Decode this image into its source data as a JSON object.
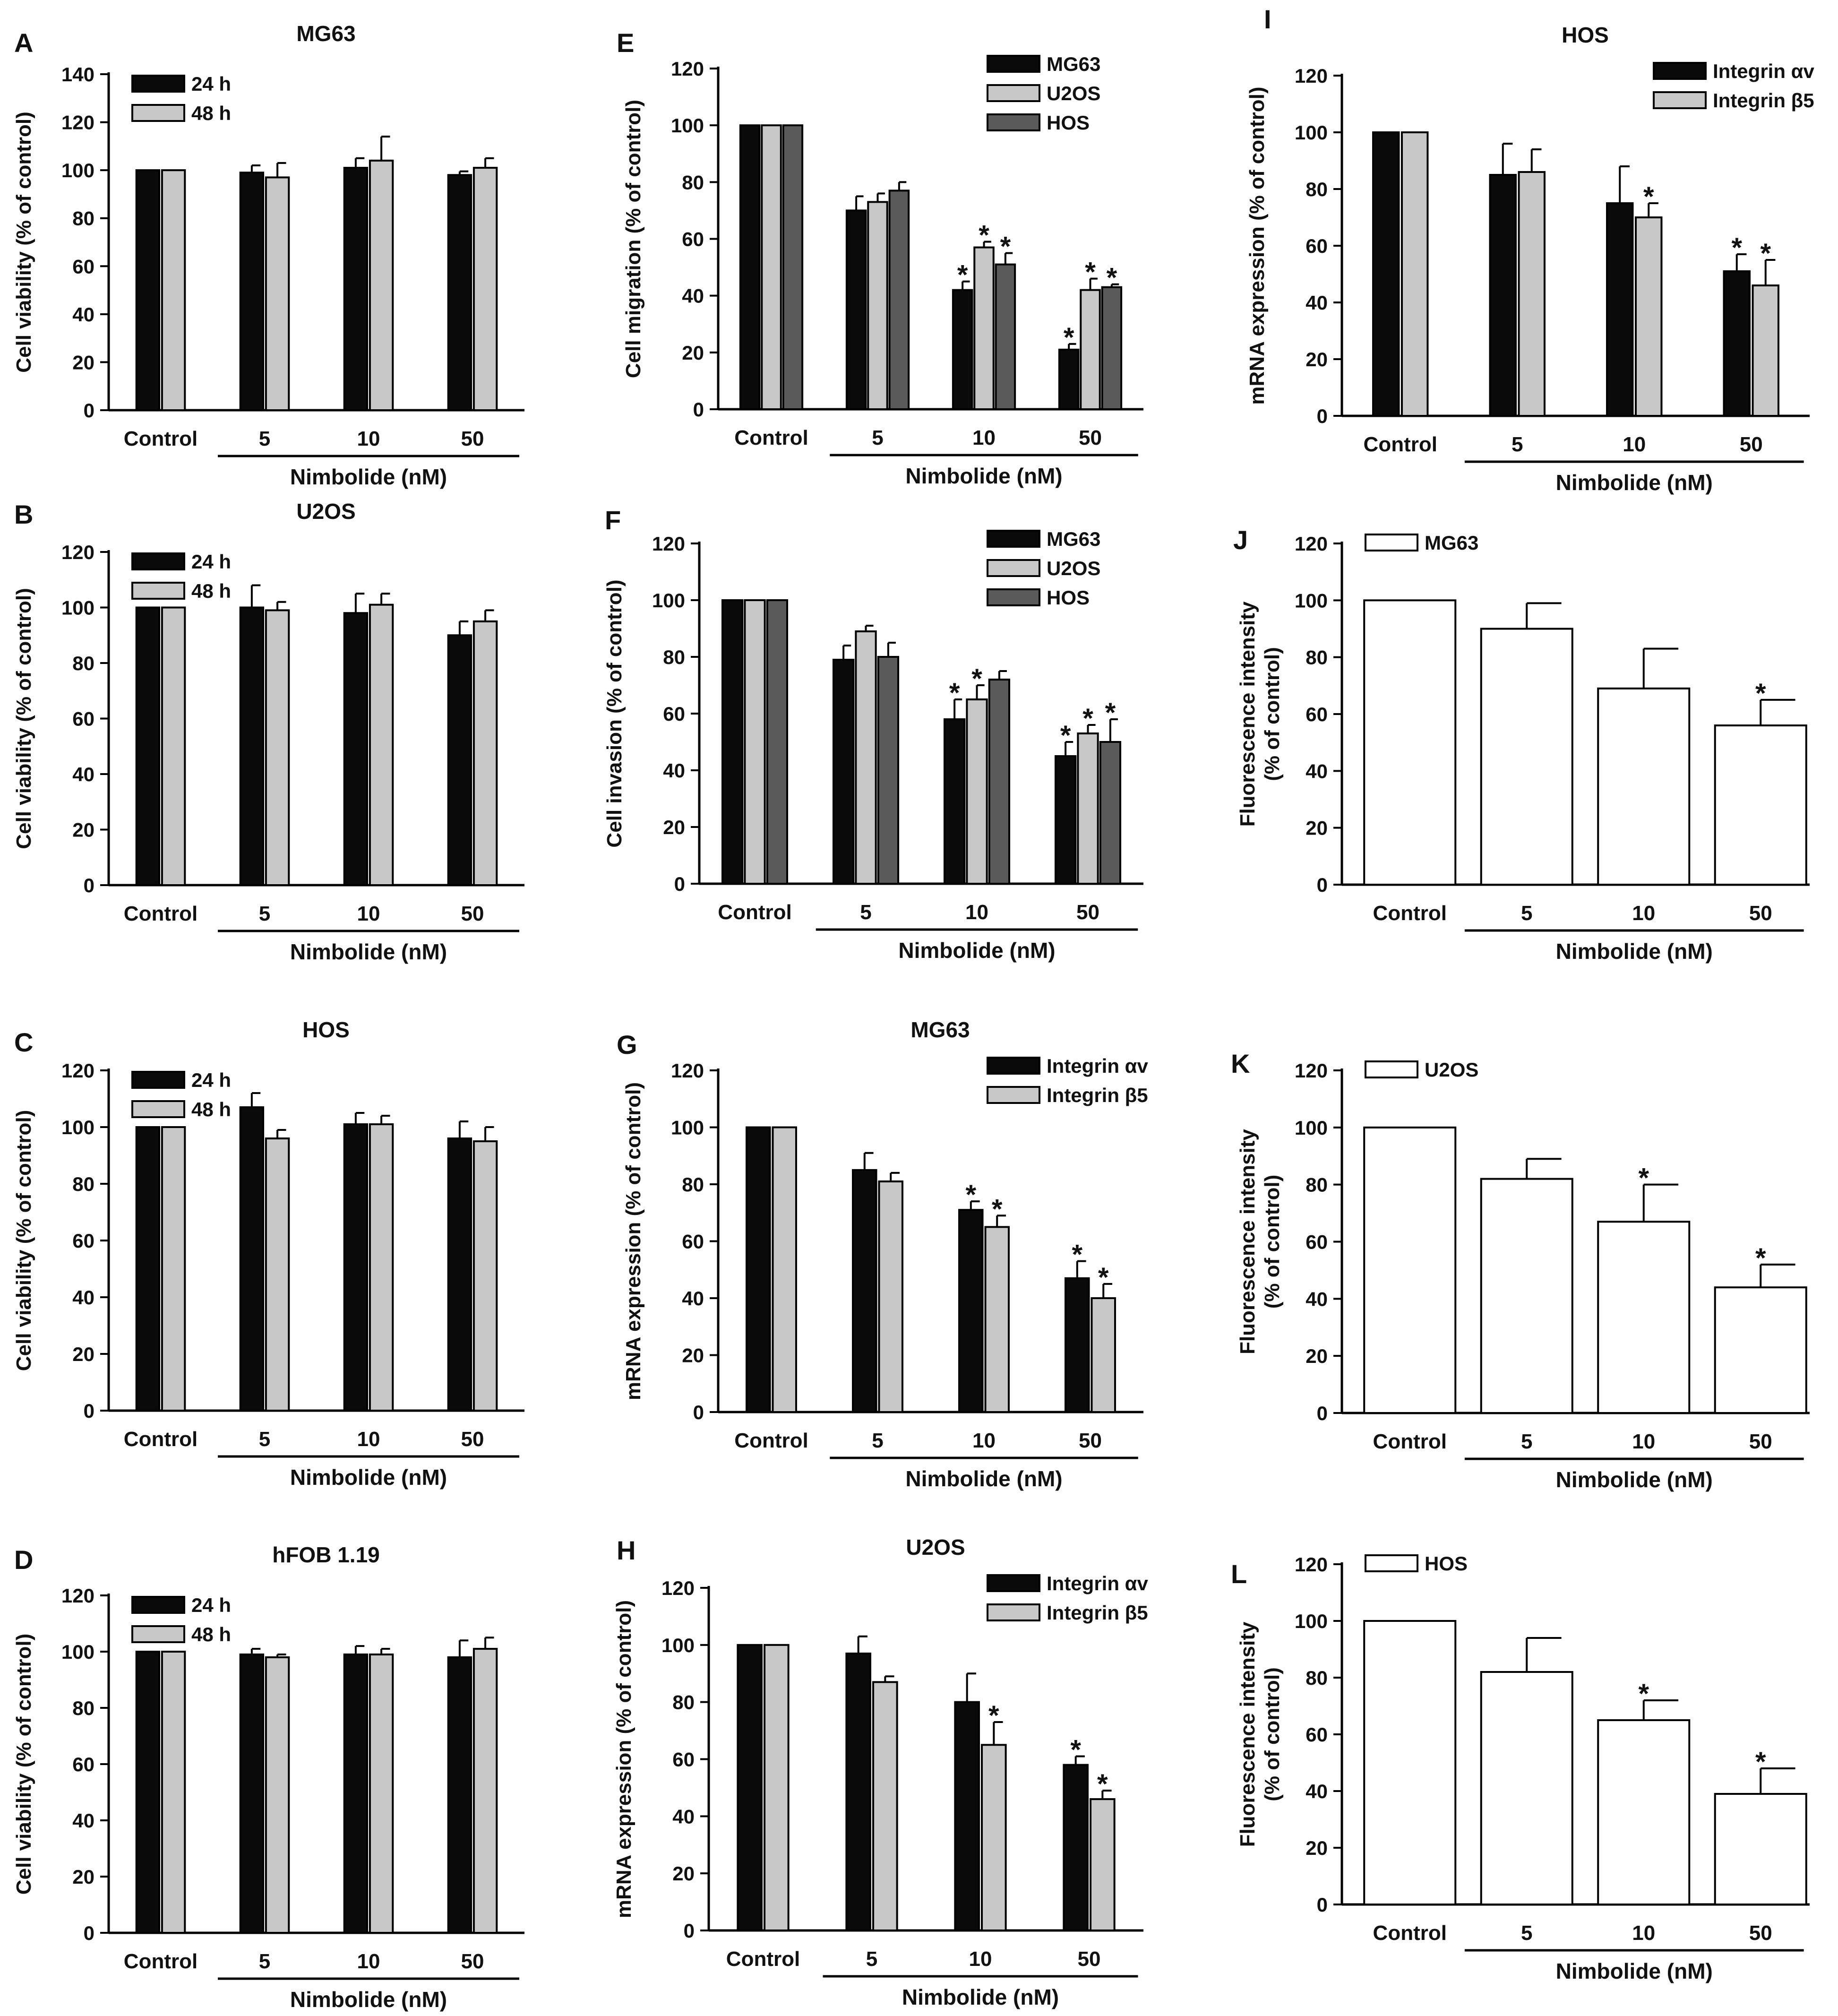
{
  "figure": {
    "x_group_label": "Nimbolide (nM)",
    "colors": {
      "black": "#0a0a0a",
      "light_gray": "#c8c8c8",
      "dark_gray": "#5a5a5a",
      "white": "#ffffff",
      "axis": "#000000"
    },
    "significance_marker": "*"
  },
  "chart_data": [
    {
      "id": "A",
      "panel_label": "A",
      "type": "bar",
      "title": "MG63",
      "ylabel": "Cell viability (% of control)",
      "ylim": [
        0,
        140
      ],
      "yticks": [
        0,
        20,
        40,
        60,
        80,
        100,
        120,
        140
      ],
      "categories": [
        "Control",
        "5",
        "10",
        "50"
      ],
      "xlabel": "Nimbolide (nM)",
      "legend_position": "top-left",
      "series": [
        {
          "name": "24 h",
          "color": "black",
          "values": [
            100,
            99,
            101,
            98
          ],
          "errors": [
            0,
            3,
            4,
            1.5
          ],
          "sig": [
            false,
            false,
            false,
            false
          ]
        },
        {
          "name": "48 h",
          "color": "light_gray",
          "values": [
            100,
            97,
            104,
            101
          ],
          "errors": [
            0,
            6,
            10,
            4
          ],
          "sig": [
            false,
            false,
            false,
            false
          ]
        }
      ]
    },
    {
      "id": "B",
      "panel_label": "B",
      "type": "bar",
      "title": "U2OS",
      "ylabel": "Cell viability (% of control)",
      "ylim": [
        0,
        120
      ],
      "yticks": [
        0,
        20,
        40,
        60,
        80,
        100,
        120
      ],
      "categories": [
        "Control",
        "5",
        "10",
        "50"
      ],
      "xlabel": "Nimbolide (nM)",
      "legend_position": "top-left",
      "series": [
        {
          "name": "24 h",
          "color": "black",
          "values": [
            100,
            100,
            98,
            90
          ],
          "errors": [
            0,
            8,
            7,
            5
          ],
          "sig": [
            false,
            false,
            false,
            false
          ]
        },
        {
          "name": "48 h",
          "color": "light_gray",
          "values": [
            100,
            99,
            101,
            95
          ],
          "errors": [
            0,
            3,
            4,
            4
          ],
          "sig": [
            false,
            false,
            false,
            false
          ]
        }
      ]
    },
    {
      "id": "C",
      "panel_label": "C",
      "type": "bar",
      "title": "HOS",
      "ylabel": "Cell viability (% of control)",
      "ylim": [
        0,
        120
      ],
      "yticks": [
        0,
        20,
        40,
        60,
        80,
        100,
        120
      ],
      "categories": [
        "Control",
        "5",
        "10",
        "50"
      ],
      "xlabel": "Nimbolide (nM)",
      "legend_position": "top-left",
      "series": [
        {
          "name": "24 h",
          "color": "black",
          "values": [
            100,
            107,
            101,
            96
          ],
          "errors": [
            0,
            5,
            4,
            6
          ],
          "sig": [
            false,
            false,
            false,
            false
          ]
        },
        {
          "name": "48 h",
          "color": "light_gray",
          "values": [
            100,
            96,
            101,
            95
          ],
          "errors": [
            0,
            3,
            3,
            5
          ],
          "sig": [
            false,
            false,
            false,
            false
          ]
        }
      ]
    },
    {
      "id": "D",
      "panel_label": "D",
      "type": "bar",
      "title": "hFOB 1.19",
      "ylabel": "Cell viability (% of control)",
      "ylim": [
        0,
        120
      ],
      "yticks": [
        0,
        20,
        40,
        60,
        80,
        100,
        120
      ],
      "categories": [
        "Control",
        "5",
        "10",
        "50"
      ],
      "xlabel": "Nimbolide (nM)",
      "legend_position": "top-left",
      "series": [
        {
          "name": "24 h",
          "color": "black",
          "values": [
            100,
            99,
            99,
            98
          ],
          "errors": [
            0,
            2,
            3,
            6
          ],
          "sig": [
            false,
            false,
            false,
            false
          ]
        },
        {
          "name": "48 h",
          "color": "light_gray",
          "values": [
            100,
            98,
            99,
            101
          ],
          "errors": [
            0,
            1,
            2,
            4
          ],
          "sig": [
            false,
            false,
            false,
            false
          ]
        }
      ]
    },
    {
      "id": "E",
      "panel_label": "E",
      "type": "bar",
      "title": "",
      "ylabel": "Cell migration (% of control)",
      "ylim": [
        0,
        120
      ],
      "yticks": [
        0,
        20,
        40,
        60,
        80,
        100,
        120
      ],
      "categories": [
        "Control",
        "5",
        "10",
        "50"
      ],
      "xlabel": "Nimbolide (nM)",
      "legend_position": "top-right",
      "series": [
        {
          "name": "MG63",
          "color": "black",
          "values": [
            100,
            70,
            42,
            21
          ],
          "errors": [
            0,
            5,
            3,
            2
          ],
          "sig": [
            false,
            false,
            true,
            true
          ]
        },
        {
          "name": "U2OS",
          "color": "light_gray",
          "values": [
            100,
            73,
            57,
            42
          ],
          "errors": [
            0,
            3,
            2,
            4
          ],
          "sig": [
            false,
            false,
            true,
            true
          ]
        },
        {
          "name": "HOS",
          "color": "dark_gray",
          "values": [
            100,
            77,
            51,
            43
          ],
          "errors": [
            0,
            3,
            4,
            1
          ],
          "sig": [
            false,
            false,
            true,
            true
          ]
        }
      ]
    },
    {
      "id": "F",
      "panel_label": "F",
      "type": "bar",
      "title": "",
      "ylabel": "Cell invasion (% of control)",
      "ylim": [
        0,
        120
      ],
      "yticks": [
        0,
        20,
        40,
        60,
        80,
        100,
        120
      ],
      "categories": [
        "Control",
        "5",
        "10",
        "50"
      ],
      "xlabel": "Nimbolide (nM)",
      "legend_position": "top-right",
      "series": [
        {
          "name": "MG63",
          "color": "black",
          "values": [
            100,
            79,
            58,
            45
          ],
          "errors": [
            0,
            5,
            7,
            5
          ],
          "sig": [
            false,
            false,
            true,
            true
          ]
        },
        {
          "name": "U2OS",
          "color": "light_gray",
          "values": [
            100,
            89,
            65,
            53
          ],
          "errors": [
            0,
            2,
            5,
            3
          ],
          "sig": [
            false,
            false,
            true,
            true
          ]
        },
        {
          "name": "HOS",
          "color": "dark_gray",
          "values": [
            100,
            80,
            72,
            50
          ],
          "errors": [
            0,
            5,
            3,
            8
          ],
          "sig": [
            false,
            false,
            false,
            true
          ]
        }
      ]
    },
    {
      "id": "G",
      "panel_label": "G",
      "type": "bar",
      "title": "MG63",
      "ylabel": "mRNA expression (% of control)",
      "ylim": [
        0,
        120
      ],
      "yticks": [
        0,
        20,
        40,
        60,
        80,
        100,
        120
      ],
      "categories": [
        "Control",
        "5",
        "10",
        "50"
      ],
      "xlabel": "Nimbolide (nM)",
      "legend_position": "top-right",
      "series": [
        {
          "name": "Integrin αv",
          "color": "black",
          "values": [
            100,
            85,
            71,
            47
          ],
          "errors": [
            0,
            6,
            3,
            6
          ],
          "sig": [
            false,
            false,
            true,
            true
          ]
        },
        {
          "name": "Integrin β5",
          "color": "light_gray",
          "values": [
            100,
            81,
            65,
            40
          ],
          "errors": [
            0,
            3,
            4,
            5
          ],
          "sig": [
            false,
            false,
            true,
            true
          ]
        }
      ]
    },
    {
      "id": "H",
      "panel_label": "H",
      "type": "bar",
      "title": "U2OS",
      "ylabel": "mRNA expression (% of control)",
      "ylim": [
        0,
        120
      ],
      "yticks": [
        0,
        20,
        40,
        60,
        80,
        100,
        120
      ],
      "categories": [
        "Control",
        "5",
        "10",
        "50"
      ],
      "xlabel": "Nimbolide (nM)",
      "legend_position": "top-right",
      "series": [
        {
          "name": "Integrin αv",
          "color": "black",
          "values": [
            100,
            97,
            80,
            58
          ],
          "errors": [
            0,
            6,
            10,
            3
          ],
          "sig": [
            false,
            false,
            false,
            true
          ]
        },
        {
          "name": "Integrin β5",
          "color": "light_gray",
          "values": [
            100,
            87,
            65,
            46
          ],
          "errors": [
            0,
            2,
            8,
            3
          ],
          "sig": [
            false,
            false,
            true,
            true
          ]
        }
      ]
    },
    {
      "id": "I",
      "panel_label": "I",
      "type": "bar",
      "title": "HOS",
      "ylabel": "mRNA expression (% of control)",
      "ylim": [
        0,
        120
      ],
      "yticks": [
        0,
        20,
        40,
        60,
        80,
        100,
        120
      ],
      "categories": [
        "Control",
        "5",
        "10",
        "50"
      ],
      "xlabel": "Nimbolide (nM)",
      "legend_position": "top-right",
      "series": [
        {
          "name": "Integrin αv",
          "color": "black",
          "values": [
            100,
            85,
            75,
            51
          ],
          "errors": [
            0,
            11,
            13,
            6
          ],
          "sig": [
            false,
            false,
            false,
            true
          ]
        },
        {
          "name": "Integrin β5",
          "color": "light_gray",
          "values": [
            100,
            86,
            70,
            46
          ],
          "errors": [
            0,
            8,
            5,
            9
          ],
          "sig": [
            false,
            false,
            true,
            true
          ]
        }
      ]
    },
    {
      "id": "J",
      "panel_label": "J",
      "type": "bar",
      "title": "",
      "ylabel": "Fluorescence intensity (% of control)",
      "ylabel_lines": [
        "Fluorescence intensity",
        "(% of control)"
      ],
      "ylim": [
        0,
        120
      ],
      "yticks": [
        0,
        20,
        40,
        60,
        80,
        100,
        120
      ],
      "categories": [
        "Control",
        "5",
        "10",
        "50"
      ],
      "xlabel": "Nimbolide (nM)",
      "legend_position": "top-left",
      "series": [
        {
          "name": "MG63",
          "color": "white",
          "values": [
            100,
            90,
            69,
            56
          ],
          "errors": [
            0,
            9,
            14,
            9
          ],
          "sig": [
            false,
            false,
            false,
            true
          ]
        }
      ]
    },
    {
      "id": "K",
      "panel_label": "K",
      "type": "bar",
      "title": "",
      "ylabel": "Fluorescence intensity (% of control)",
      "ylabel_lines": [
        "Fluorescence intensity",
        "(% of control)"
      ],
      "ylim": [
        0,
        120
      ],
      "yticks": [
        0,
        20,
        40,
        60,
        80,
        100,
        120
      ],
      "categories": [
        "Control",
        "5",
        "10",
        "50"
      ],
      "xlabel": "Nimbolide (nM)",
      "legend_position": "top-left",
      "series": [
        {
          "name": "U2OS",
          "color": "white",
          "values": [
            100,
            82,
            67,
            44
          ],
          "errors": [
            0,
            7,
            13,
            8
          ],
          "sig": [
            false,
            false,
            true,
            true
          ]
        }
      ]
    },
    {
      "id": "L",
      "panel_label": "L",
      "type": "bar",
      "title": "",
      "ylabel": "Fluorescence intensity (% of control)",
      "ylabel_lines": [
        "Fluorescence intensity",
        "(% of control)"
      ],
      "ylim": [
        0,
        120
      ],
      "yticks": [
        0,
        20,
        40,
        60,
        80,
        100,
        120
      ],
      "categories": [
        "Control",
        "5",
        "10",
        "50"
      ],
      "xlabel": "Nimbolide (nM)",
      "legend_position": "top-left",
      "series": [
        {
          "name": "HOS",
          "color": "white",
          "values": [
            100,
            82,
            65,
            39
          ],
          "errors": [
            0,
            12,
            7,
            9
          ],
          "sig": [
            false,
            false,
            true,
            true
          ]
        }
      ]
    }
  ]
}
